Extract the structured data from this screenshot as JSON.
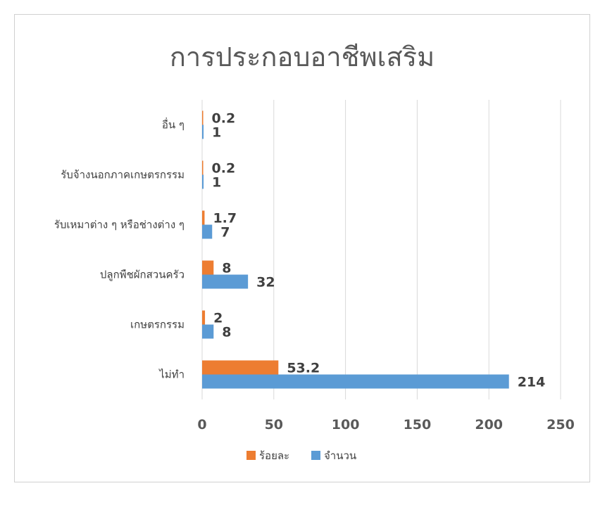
{
  "chart_data": {
    "type": "bar",
    "orientation": "horizontal",
    "title": "การประกอบอาชีพเสริม",
    "xlabel": "",
    "ylabel": "",
    "categories": [
      "ไม่ทำ",
      "เกษตรกรรม",
      "ปลูกพืชผักสวนครัว",
      "รับเหมาต่าง ๆ หรือช่างต่าง ๆ",
      "รับจ้างนอกภาคเกษตรกรรม",
      "อื่น ๆ"
    ],
    "series": [
      {
        "name": "ร้อยละ",
        "values": [
          53.2,
          2,
          8,
          1.7,
          0.2,
          0.2
        ],
        "labels": [
          "53.2",
          "2",
          "8",
          "1.7",
          "0.2",
          "0.2"
        ],
        "color": "#ED7D31"
      },
      {
        "name": "จำนวน",
        "values": [
          214,
          8,
          32,
          7,
          1,
          1
        ],
        "labels": [
          "214",
          "8",
          "32",
          "7",
          "1",
          "1"
        ],
        "color": "#5B9BD5"
      }
    ],
    "xlim": [
      0,
      250
    ],
    "xticks": [
      0,
      50,
      100,
      150,
      200,
      250
    ],
    "grid": true,
    "legend": "bottom"
  }
}
